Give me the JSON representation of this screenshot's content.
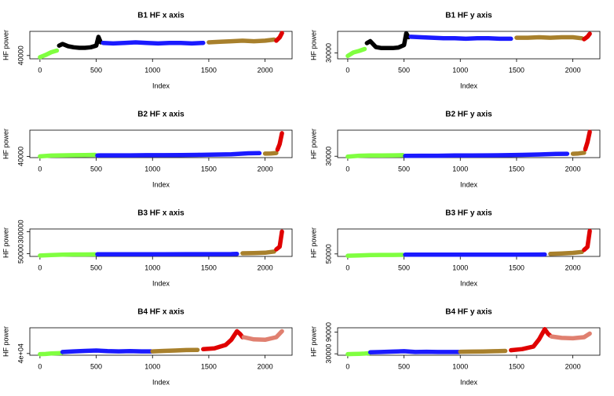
{
  "chart_data": [
    {
      "type": "scatter",
      "title": "B1 HF x axis",
      "xlabel": "Index",
      "ylabel": "HF power",
      "xlim": [
        -90,
        2240
      ],
      "xticks": [
        0,
        500,
        1000,
        1500,
        2000
      ],
      "ylim": [
        37000,
        62000
      ],
      "yticks": [
        40000
      ],
      "series": [
        {
          "color": "#80ff40",
          "x": [
            0,
            50,
            100,
            150
          ],
          "values": [
            38500,
            40500,
            43000,
            44500
          ]
        },
        {
          "color": "#000000",
          "x": [
            170,
            200,
            250,
            300,
            350,
            400,
            450,
            500,
            520,
            540
          ],
          "values": [
            49000,
            50500,
            48500,
            47500,
            47000,
            47000,
            47500,
            49000,
            57000,
            52000
          ]
        },
        {
          "color": "#1a1aff",
          "x": [
            560,
            650,
            750,
            850,
            950,
            1050,
            1150,
            1250,
            1350,
            1450
          ],
          "values": [
            51500,
            51000,
            51500,
            52000,
            51500,
            51000,
            51500,
            51500,
            51000,
            51500
          ]
        },
        {
          "color": "#a8802c",
          "x": [
            1500,
            1600,
            1700,
            1800,
            1900,
            2000,
            2080
          ],
          "values": [
            52000,
            52500,
            53000,
            53500,
            53000,
            53500,
            54500
          ]
        },
        {
          "color": "#e00000",
          "x": [
            2100,
            2130,
            2150
          ],
          "values": [
            53500,
            56500,
            60500
          ]
        }
      ]
    },
    {
      "type": "scatter",
      "title": "B1 HF y axis",
      "xlabel": "Index",
      "ylabel": "HF power",
      "xlim": [
        -90,
        2240
      ],
      "xticks": [
        0,
        500,
        1000,
        1500,
        2000
      ],
      "ylim": [
        24000,
        52000
      ],
      "yticks": [
        30000
      ],
      "series": [
        {
          "color": "#80ff40",
          "x": [
            0,
            50,
            100,
            150
          ],
          "values": [
            27000,
            30500,
            32000,
            34000
          ]
        },
        {
          "color": "#000000",
          "x": [
            170,
            200,
            250,
            300,
            350,
            400,
            450,
            500,
            520,
            540
          ],
          "values": [
            40000,
            42000,
            36000,
            35000,
            35000,
            35000,
            35500,
            38000,
            50000,
            46000
          ]
        },
        {
          "color": "#1a1aff",
          "x": [
            560,
            650,
            750,
            850,
            950,
            1050,
            1150,
            1250,
            1350,
            1450
          ],
          "values": [
            46500,
            46000,
            45500,
            45000,
            45000,
            44500,
            45000,
            45000,
            44500,
            44500
          ]
        },
        {
          "color": "#a8802c",
          "x": [
            1500,
            1600,
            1700,
            1800,
            1900,
            2000,
            2080
          ],
          "values": [
            45500,
            45500,
            46000,
            45500,
            46000,
            46000,
            45000
          ]
        },
        {
          "color": "#e00000",
          "x": [
            2100,
            2130,
            2150
          ],
          "values": [
            44000,
            46500,
            49500
          ]
        }
      ]
    },
    {
      "type": "scatter",
      "title": "B2 HF x axis",
      "xlabel": "Index",
      "ylabel": "HF power",
      "xlim": [
        -90,
        2240
      ],
      "xticks": [
        0,
        500,
        1000,
        1500,
        2000
      ],
      "ylim": [
        36000,
        125000
      ],
      "yticks": [
        40000
      ],
      "series": [
        {
          "color": "#80ff40",
          "x": [
            0,
            100,
            200,
            300,
            400,
            490
          ],
          "values": [
            40000,
            42500,
            43500,
            44000,
            44500,
            45000
          ]
        },
        {
          "color": "#1a1aff",
          "x": [
            510,
            650,
            800,
            950,
            1100,
            1250,
            1400,
            1550,
            1700,
            1850,
            1950
          ],
          "values": [
            43000,
            43500,
            43500,
            44000,
            44000,
            44500,
            45000,
            46000,
            47000,
            50000,
            50500
          ]
        },
        {
          "color": "#a8802c",
          "x": [
            2000,
            2050,
            2100
          ],
          "values": [
            49000,
            49500,
            51000
          ]
        },
        {
          "color": "#e00000",
          "x": [
            2110,
            2130,
            2150
          ],
          "values": [
            62000,
            80000,
            115000
          ]
        }
      ]
    },
    {
      "type": "scatter",
      "title": "B2 HF y axis",
      "xlabel": "Index",
      "ylabel": "HF power",
      "xlim": [
        -90,
        2240
      ],
      "xticks": [
        0,
        500,
        1000,
        1500,
        2000
      ],
      "ylim": [
        26000,
        105000
      ],
      "yticks": [
        30000
      ],
      "series": [
        {
          "color": "#80ff40",
          "x": [
            0,
            100,
            200,
            300,
            400,
            490
          ],
          "values": [
            29000,
            31500,
            32000,
            32000,
            32500,
            33000
          ]
        },
        {
          "color": "#1a1aff",
          "x": [
            510,
            650,
            800,
            950,
            1100,
            1250,
            1400,
            1550,
            1700,
            1850,
            1950
          ],
          "values": [
            31000,
            31500,
            31500,
            32000,
            32000,
            32500,
            33000,
            34000,
            35000,
            36500,
            37000
          ]
        },
        {
          "color": "#a8802c",
          "x": [
            2000,
            2050,
            2100
          ],
          "values": [
            37000,
            38000,
            40000
          ]
        },
        {
          "color": "#e00000",
          "x": [
            2110,
            2130,
            2150
          ],
          "values": [
            50000,
            70000,
            100000
          ]
        }
      ]
    },
    {
      "type": "scatter",
      "title": "B3 HF x axis",
      "xlabel": "Index",
      "ylabel": "HF power",
      "xlim": [
        -90,
        2240
      ],
      "xticks": [
        0,
        500,
        1000,
        1500,
        2000
      ],
      "ylim": [
        20000,
        330000
      ],
      "yticks": [
        50000,
        300000
      ],
      "series": [
        {
          "color": "#80ff40",
          "x": [
            0,
            100,
            200,
            300,
            400,
            490
          ],
          "values": [
            30000,
            35000,
            40000,
            42000,
            42000,
            43000
          ]
        },
        {
          "color": "#1a1aff",
          "x": [
            510,
            700,
            900,
            1100,
            1300,
            1500,
            1700,
            1750
          ],
          "values": [
            45000,
            45000,
            45000,
            45000,
            46000,
            46000,
            47000,
            48000
          ]
        },
        {
          "color": "#a8802c",
          "x": [
            1800,
            1900,
            2000,
            2080
          ],
          "values": [
            55000,
            58000,
            62000,
            75000
          ]
        },
        {
          "color": "#e00000",
          "x": [
            2100,
            2130,
            2150
          ],
          "values": [
            100000,
            130000,
            300000
          ]
        }
      ]
    },
    {
      "type": "scatter",
      "title": "B3 HF y axis",
      "xlabel": "Index",
      "ylabel": "HF power",
      "xlim": [
        -90,
        2240
      ],
      "xticks": [
        0,
        500,
        1000,
        1500,
        2000
      ],
      "ylim": [
        25000,
        300000
      ],
      "yticks": [
        50000
      ],
      "series": [
        {
          "color": "#80ff40",
          "x": [
            0,
            100,
            200,
            300,
            400,
            490
          ],
          "values": [
            32000,
            35000,
            38000,
            40000,
            40000,
            41000
          ]
        },
        {
          "color": "#1a1aff",
          "x": [
            510,
            700,
            900,
            1100,
            1300,
            1500,
            1700,
            1750
          ],
          "values": [
            42000,
            42000,
            42000,
            42000,
            43000,
            43000,
            44000,
            45000
          ]
        },
        {
          "color": "#a8802c",
          "x": [
            1800,
            1900,
            2000,
            2080
          ],
          "values": [
            50000,
            55000,
            60000,
            70000
          ]
        },
        {
          "color": "#e00000",
          "x": [
            2100,
            2130,
            2150
          ],
          "values": [
            90000,
            120000,
            280000
          ]
        }
      ]
    },
    {
      "type": "scatter",
      "title": "B4 HF x axis",
      "xlabel": "Index",
      "ylabel": "HF power",
      "xlim": [
        -90,
        2240
      ],
      "xticks": [
        0,
        500,
        1000,
        1500,
        2000
      ],
      "ylim": [
        36000,
        100000
      ],
      "yticks": [
        {
          "value": 40000,
          "label": "4e+04"
        }
      ],
      "series": [
        {
          "color": "#80ff40",
          "x": [
            0,
            50,
            100,
            150,
            190
          ],
          "values": [
            38500,
            39000,
            40000,
            40500,
            41000
          ]
        },
        {
          "color": "#1a1aff",
          "x": [
            200,
            300,
            400,
            500,
            600,
            700,
            800,
            900,
            990
          ],
          "values": [
            43500,
            45000,
            46000,
            47000,
            45500,
            45000,
            45500,
            45000,
            45000
          ]
        },
        {
          "color": "#a8802c",
          "x": [
            1000,
            1100,
            1200,
            1300,
            1400
          ],
          "values": [
            45000,
            46000,
            47000,
            48000,
            48500
          ]
        },
        {
          "color": "#e00000",
          "x": [
            1450,
            1550,
            1650,
            1700,
            1750,
            1780,
            1800
          ],
          "values": [
            50000,
            52000,
            60000,
            72000,
            92000,
            85000,
            78000
          ]
        },
        {
          "color": "#e08070",
          "x": [
            1810,
            1900,
            2000,
            2100,
            2150
          ],
          "values": [
            78000,
            73000,
            72000,
            78000,
            92000
          ]
        }
      ]
    },
    {
      "type": "scatter",
      "title": "B4 HF y axis",
      "xlabel": "Index",
      "ylabel": "HF power",
      "xlim": [
        -90,
        2240
      ],
      "xticks": [
        0,
        500,
        1000,
        1500,
        2000
      ],
      "ylim": [
        26000,
        102000
      ],
      "yticks": [
        30000,
        90000
      ],
      "series": [
        {
          "color": "#80ff40",
          "x": [
            0,
            50,
            100,
            150,
            190
          ],
          "values": [
            29000,
            29500,
            30000,
            30500,
            31500
          ]
        },
        {
          "color": "#1a1aff",
          "x": [
            200,
            300,
            400,
            500,
            600,
            700,
            800,
            900,
            990
          ],
          "values": [
            34000,
            35000,
            36000,
            37000,
            35000,
            35500,
            35000,
            35000,
            35000
          ]
        },
        {
          "color": "#a8802c",
          "x": [
            1000,
            1100,
            1200,
            1300,
            1400
          ],
          "values": [
            35500,
            36000,
            36500,
            37000,
            38000
          ]
        },
        {
          "color": "#e00000",
          "x": [
            1450,
            1550,
            1650,
            1700,
            1750,
            1780,
            1800
          ],
          "values": [
            40000,
            43000,
            50000,
            70000,
            98000,
            85000,
            80000
          ]
        },
        {
          "color": "#e08070",
          "x": [
            1810,
            1900,
            2000,
            2100,
            2150
          ],
          "values": [
            78000,
            74000,
            73000,
            76000,
            86000
          ]
        }
      ]
    }
  ]
}
